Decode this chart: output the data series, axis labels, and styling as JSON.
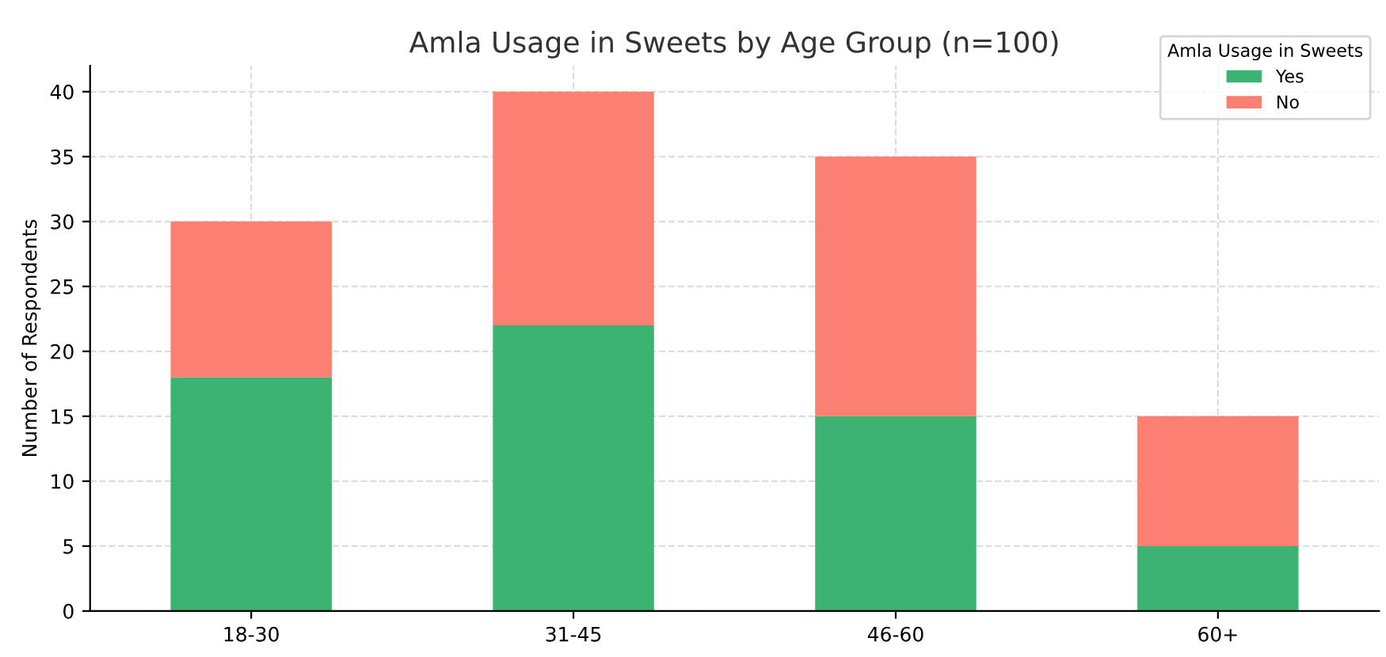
{
  "chart_data": {
    "type": "bar",
    "title": "Amla Usage in Sweets by Age Group (n=100)",
    "ylabel": "Number of Respondents",
    "legend_title": "Amla Usage in Sweets",
    "categories": [
      "18-30",
      "31-45",
      "46-60",
      "60+"
    ],
    "series": [
      {
        "name": "Yes",
        "color": "#3cb371",
        "values": [
          18,
          22,
          15,
          5
        ]
      },
      {
        "name": "No",
        "color": "#fa8072",
        "values": [
          12,
          18,
          20,
          10
        ]
      }
    ],
    "stacked": true,
    "ylim": [
      0,
      42
    ],
    "yticks": [
      0,
      5,
      10,
      15,
      20,
      25,
      30,
      35,
      40
    ],
    "grid": true,
    "legend": "top right"
  }
}
